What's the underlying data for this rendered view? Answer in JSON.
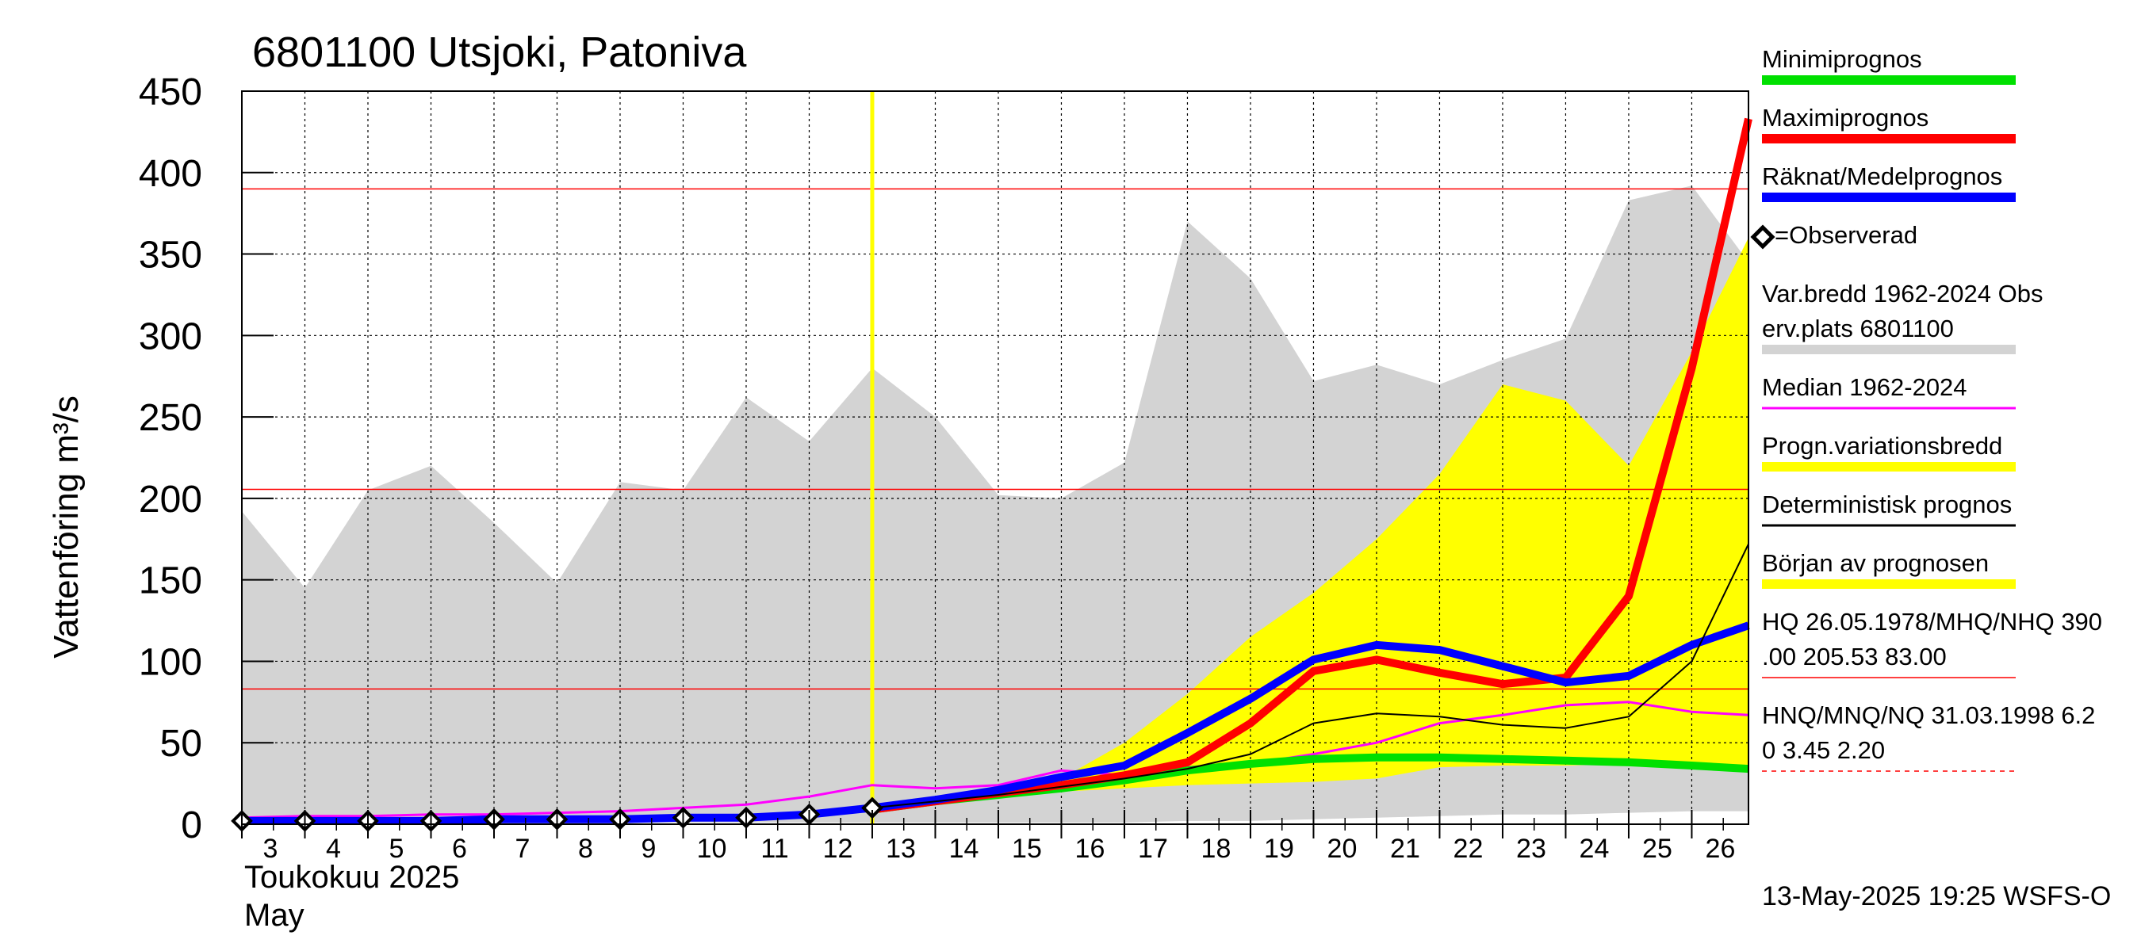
{
  "chart_data": {
    "type": "line",
    "title": "6801100 Utsjoki, Patoniva",
    "ylabel": "Vattenföring m³/s",
    "xlabel_lines": [
      "Toukokuu  2025",
      "May"
    ],
    "footer": "13-May-2025 19:25 WSFS-O",
    "ylim": [
      0,
      450
    ],
    "y_ticks": [
      0,
      50,
      100,
      150,
      200,
      250,
      300,
      350,
      400,
      450
    ],
    "x_ticks": [
      3,
      4,
      5,
      6,
      7,
      8,
      9,
      10,
      11,
      12,
      13,
      14,
      15,
      16,
      17,
      18,
      19,
      20,
      21,
      22,
      23,
      24,
      25,
      26
    ],
    "x_range": [
      3,
      26.9
    ],
    "forecast_start": 13,
    "reference_lines": [
      390,
      205.53,
      83
    ],
    "var_bredd": {
      "x": [
        3,
        4,
        5,
        6,
        7,
        8,
        9,
        10,
        11,
        12,
        13,
        14,
        15,
        16,
        17,
        18,
        19,
        20,
        21,
        22,
        23,
        24,
        25,
        26,
        26.9
      ],
      "upper": [
        192,
        145,
        205,
        220,
        185,
        148,
        210,
        205,
        262,
        235,
        280,
        250,
        202,
        200,
        222,
        370,
        335,
        272,
        282,
        270,
        285,
        298,
        383,
        392,
        345
      ],
      "lower": [
        1,
        1,
        1,
        1,
        1,
        1,
        1,
        1,
        1,
        1,
        1,
        1,
        1,
        1,
        1,
        2,
        2,
        3,
        4,
        5,
        6,
        6,
        7,
        8,
        8
      ]
    },
    "progn_bredd": {
      "x": [
        13,
        14,
        15,
        16,
        17,
        18,
        19,
        20,
        21,
        22,
        23,
        24,
        25,
        26,
        26.9
      ],
      "upper": [
        10,
        15,
        20,
        28,
        50,
        80,
        115,
        142,
        175,
        215,
        270,
        260,
        220,
        290,
        360
      ],
      "lower": [
        9,
        12,
        16,
        20,
        22,
        24,
        25,
        26,
        28,
        35,
        36,
        36,
        37,
        36,
        34
      ]
    },
    "series": [
      {
        "name": "Minimiprognos",
        "color": "#00e000",
        "width": 10,
        "x": [
          13,
          14,
          15,
          16,
          17,
          18,
          19,
          20,
          21,
          22,
          23,
          24,
          25,
          26,
          26.9
        ],
        "y": [
          9,
          14,
          18,
          22,
          27,
          33,
          37,
          40,
          41,
          41,
          40,
          39,
          38,
          36,
          34
        ]
      },
      {
        "name": "Maximiprognos",
        "color": "#ff0000",
        "width": 10,
        "x": [
          13,
          14,
          15,
          16,
          17,
          18,
          19,
          20,
          21,
          22,
          23,
          24,
          25,
          26,
          26.9
        ],
        "y": [
          9,
          14,
          19,
          24,
          30,
          38,
          62,
          94,
          101,
          93,
          86,
          90,
          140,
          280,
          433
        ]
      },
      {
        "name": "Räknat/Medelprognos",
        "color": "#0000ff",
        "width": 10,
        "x": [
          3,
          4,
          5,
          6,
          7,
          8,
          9,
          10,
          11,
          12,
          13,
          14,
          15,
          16,
          17,
          18,
          19,
          20,
          21,
          22,
          23,
          24,
          25,
          26,
          26.9
        ],
        "y": [
          2,
          2,
          2,
          2,
          3,
          3,
          3,
          4,
          4,
          6,
          10,
          15,
          21,
          29,
          36,
          56,
          77,
          101,
          110,
          107,
          97,
          87,
          91,
          110,
          122
        ]
      },
      {
        "name": "Median 1962-2024",
        "color": "#ff00ff",
        "width": 3,
        "x": [
          3,
          4,
          5,
          6,
          7,
          8,
          9,
          10,
          11,
          12,
          13,
          14,
          15,
          16,
          17,
          18,
          19,
          20,
          21,
          22,
          23,
          24,
          25,
          26,
          26.9
        ],
        "y": [
          4,
          5,
          5,
          6,
          6,
          7,
          8,
          10,
          12,
          17,
          24,
          22,
          24,
          33,
          30,
          35,
          37,
          43,
          50,
          62,
          67,
          73,
          75,
          69,
          67
        ]
      },
      {
        "name": "Deterministisk prognos",
        "color": "#000000",
        "width": 2,
        "x": [
          13,
          14,
          15,
          16,
          17,
          18,
          19,
          20,
          21,
          22,
          23,
          24,
          25,
          26,
          26.9
        ],
        "y": [
          10,
          14,
          18,
          23,
          28,
          34,
          43,
          62,
          68,
          66,
          61,
          59,
          66,
          100,
          172
        ]
      }
    ],
    "observed": {
      "x": [
        3,
        4,
        5,
        6,
        7,
        8,
        9,
        10,
        11,
        12,
        13
      ],
      "y": [
        2,
        2,
        2,
        2,
        3,
        3,
        3,
        4,
        4,
        6,
        10
      ]
    },
    "legend": {
      "position": "right",
      "items": [
        {
          "label": "Minimiprognos",
          "style": "line",
          "color": "#00e000"
        },
        {
          "label": "Maximiprognos",
          "style": "line",
          "color": "#ff0000"
        },
        {
          "label": "Räknat/Medelprognos",
          "style": "line",
          "color": "#0000ff"
        },
        {
          "label": "=Observerad",
          "style": "marker",
          "color": "#000000"
        },
        {
          "label": "Var.bredd 1962-2024   Obs",
          "label2": "erv.plats 6801100",
          "style": "line",
          "color": "#d3d3d3"
        },
        {
          "label": "Median 1962-2024",
          "style": "thin",
          "color": "#ff00ff"
        },
        {
          "label": "Progn.variationsbredd",
          "style": "line",
          "color": "#ffff00"
        },
        {
          "label": "Deterministisk prognos",
          "style": "thin",
          "color": "#000000"
        },
        {
          "label": "Början av prognosen",
          "style": "line",
          "color": "#ffff00"
        },
        {
          "label": "HQ 26.05.1978/MHQ/NHQ 390",
          "label2": ".00 205.53 83.00",
          "style": "red-thin",
          "color": "#ff0000"
        },
        {
          "label": "HNQ/MNQ/NQ 31.03.1998 6.2",
          "label2": "0 3.45 2.20",
          "style": "red-dash",
          "color": "#ff0000"
        }
      ]
    },
    "colors": {
      "var_bredd": "#d3d3d3",
      "progn_bredd": "#ffff00",
      "forecast_start": "#ffff00",
      "reference": "#ff0000",
      "grid": "#000000"
    }
  }
}
